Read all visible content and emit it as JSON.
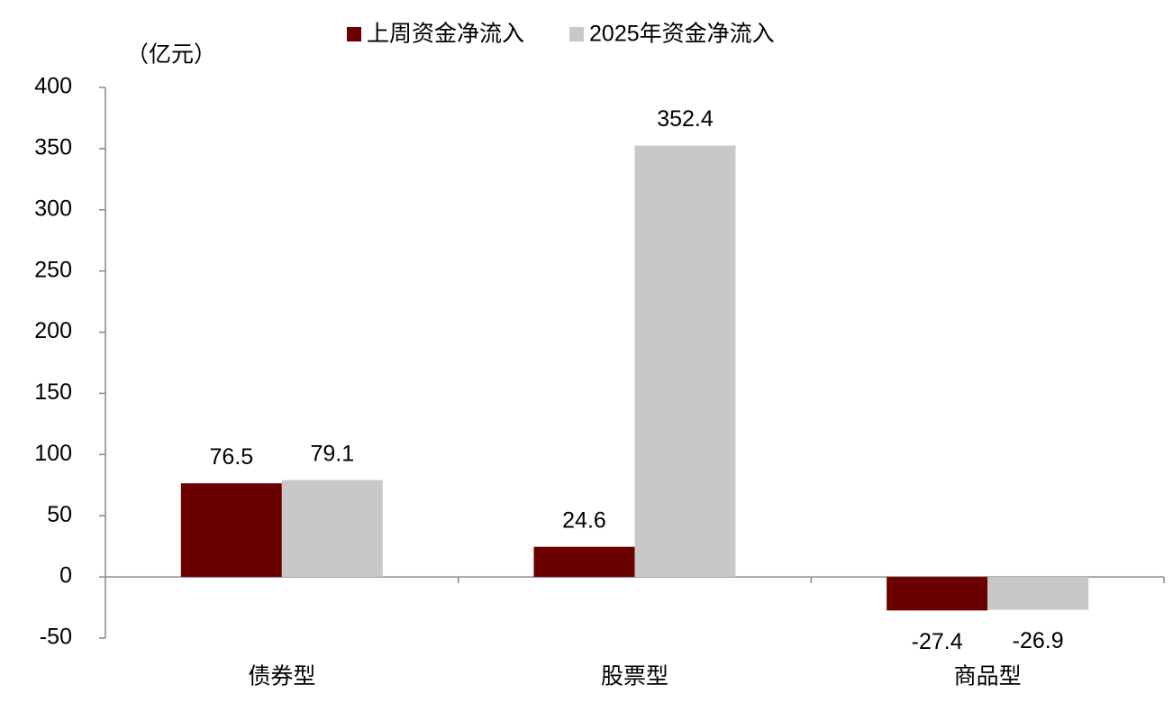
{
  "chart_data": {
    "type": "bar",
    "y_axis_label": "（亿元）",
    "categories": [
      "债券型",
      "股票型",
      "商品型"
    ],
    "series": [
      {
        "name": "上周资金净流入",
        "color": "#6b0000",
        "values": [
          76.5,
          24.6,
          -27.4
        ]
      },
      {
        "name": "2025年资金净流入",
        "color": "#c8c8c8",
        "values": [
          79.1,
          352.4,
          -26.9
        ]
      }
    ],
    "ylim": [
      -50,
      400
    ],
    "yticks": [
      -50,
      0,
      50,
      100,
      150,
      200,
      250,
      300,
      350,
      400
    ],
    "grid": false,
    "legend": "top"
  }
}
